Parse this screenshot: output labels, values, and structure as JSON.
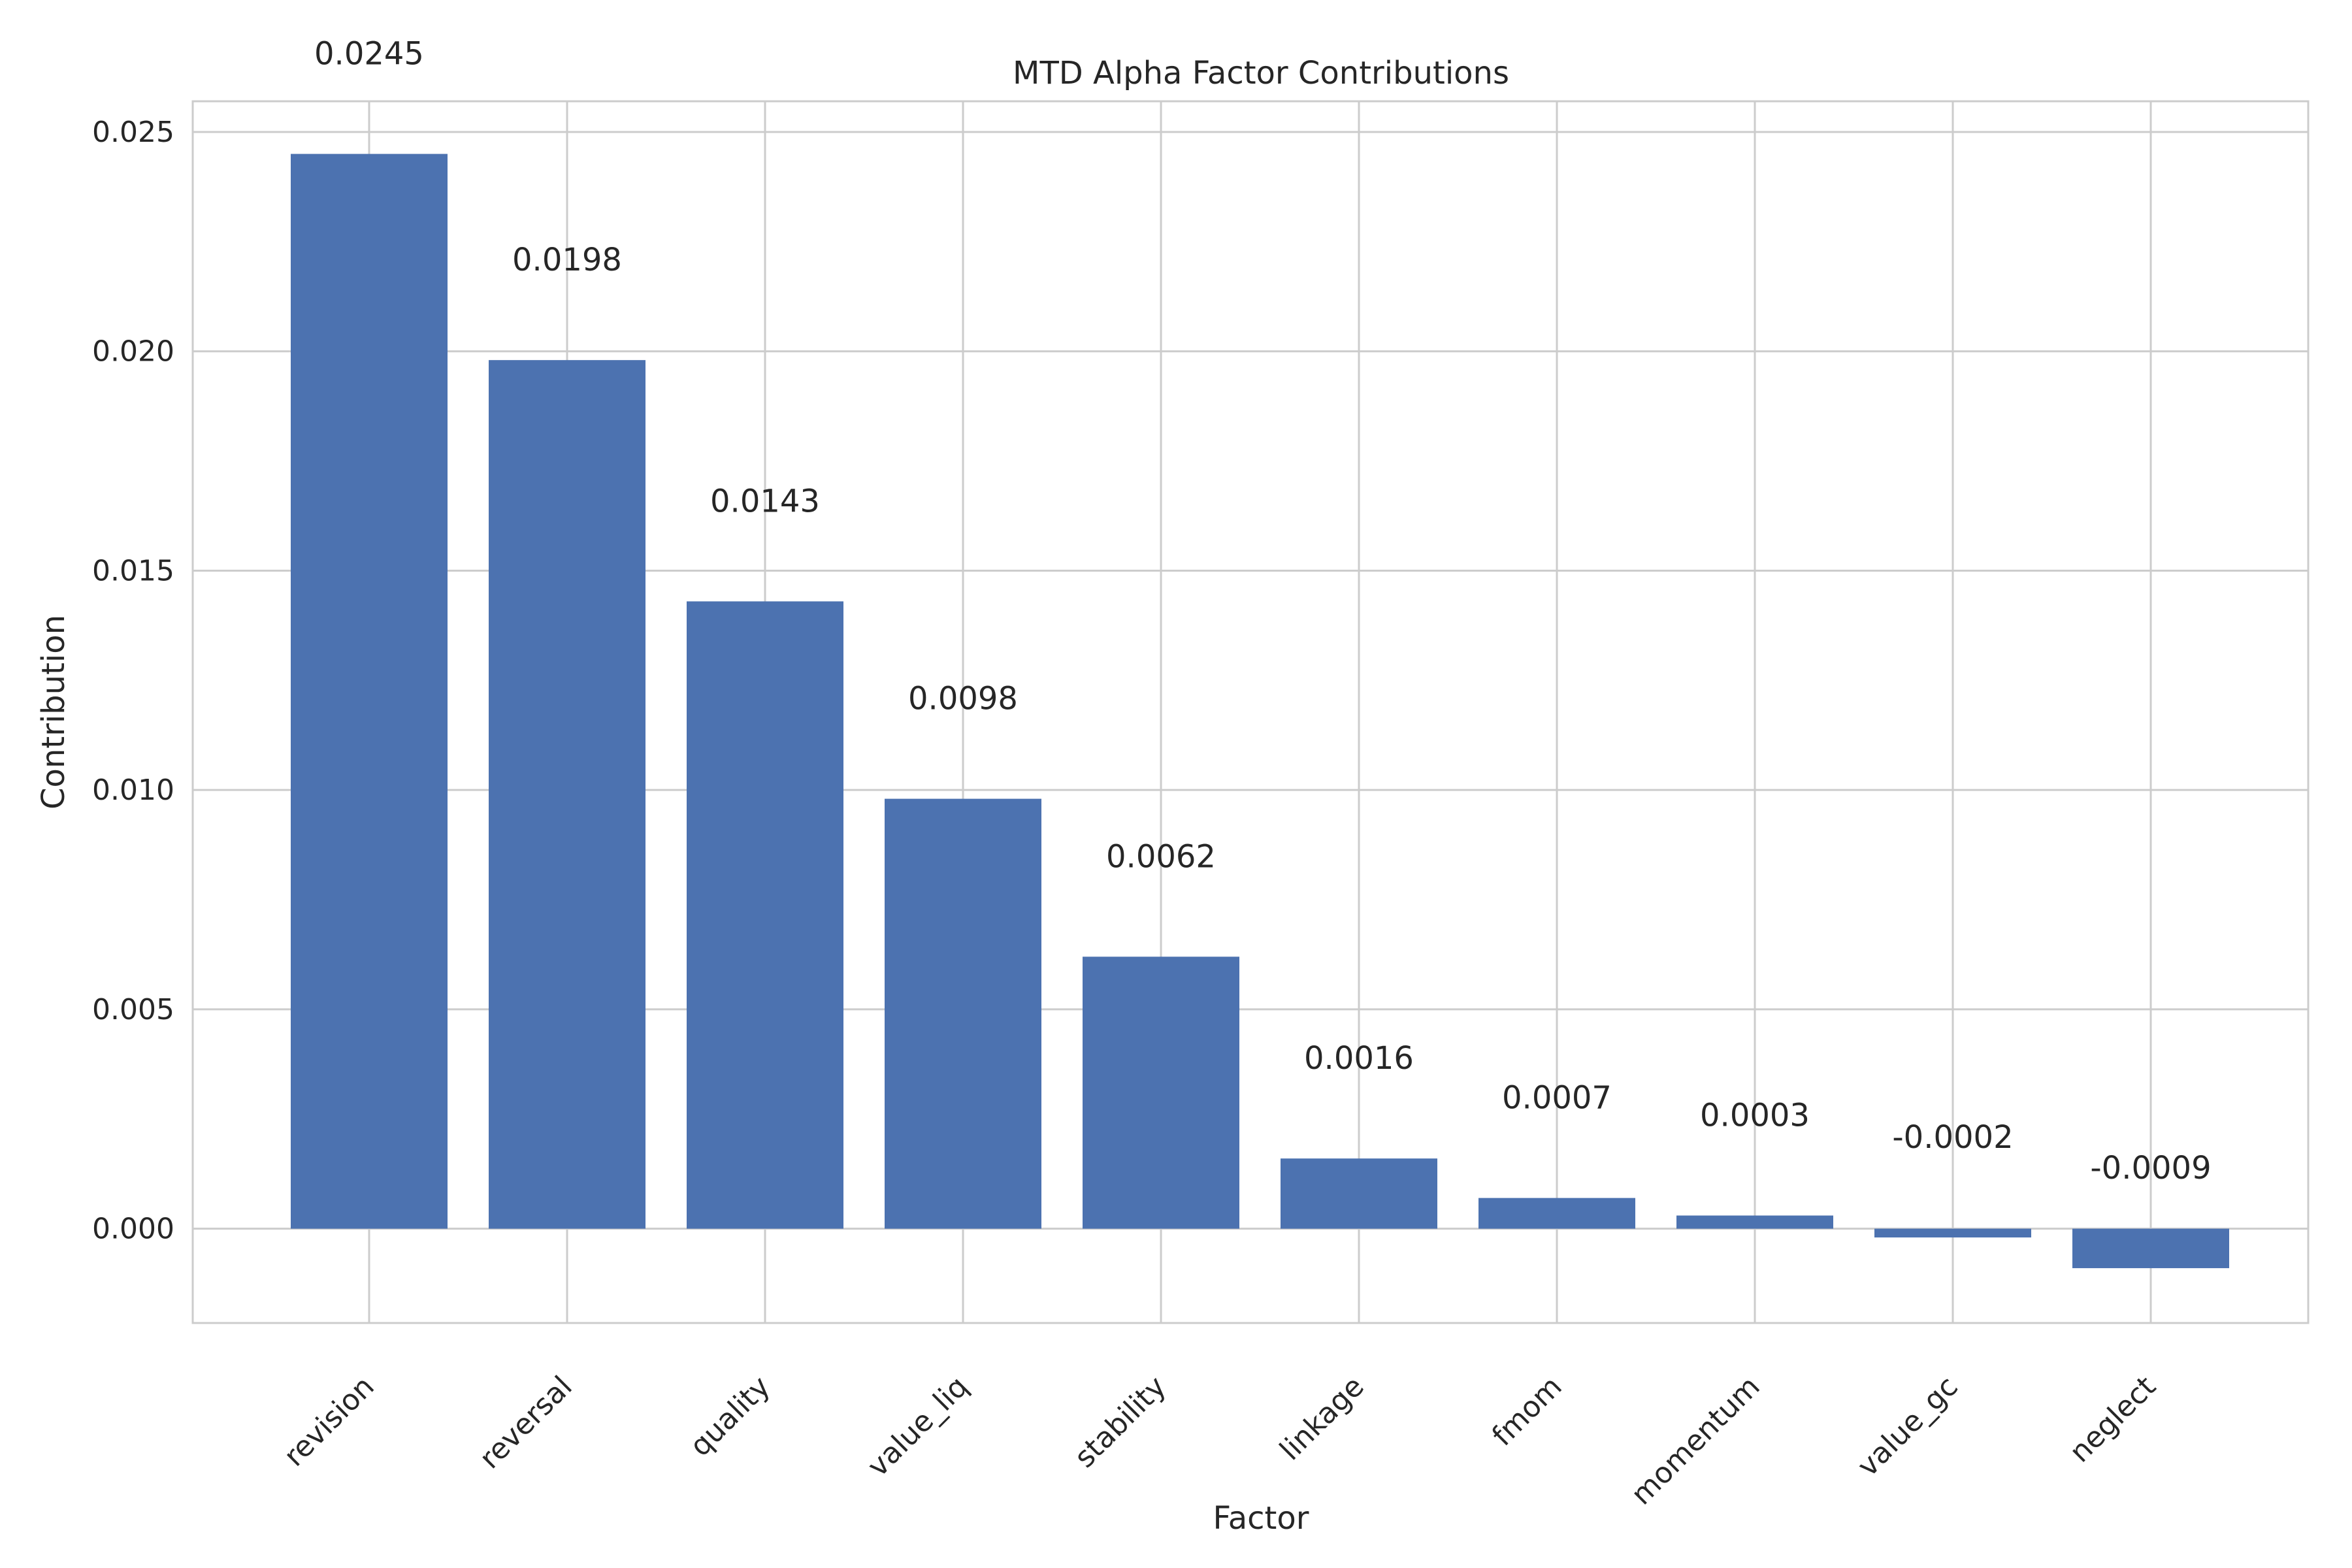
{
  "chart_data": {
    "type": "bar",
    "title": "MTD Alpha Factor Contributions",
    "xlabel": "Factor",
    "ylabel": "Contribution",
    "categories": [
      "revision",
      "reversal",
      "quality",
      "value_liq",
      "stability",
      "linkage",
      "fmom",
      "momentum",
      "value_gc",
      "neglect"
    ],
    "values": [
      0.0245,
      0.0198,
      0.0143,
      0.0098,
      0.0062,
      0.0016,
      0.0007,
      0.0003,
      -0.0002,
      -0.0009
    ],
    "data_labels": [
      "0.0245",
      "0.0198",
      "0.0143",
      "0.0098",
      "0.0062",
      "0.0016",
      "0.0007",
      "0.0003",
      "-0.0002",
      "-0.0009"
    ],
    "y_ticks": [
      0.0,
      0.005,
      0.01,
      0.015,
      0.02,
      0.025
    ],
    "y_tick_labels": [
      "0.000",
      "0.005",
      "0.010",
      "0.015",
      "0.020",
      "0.025"
    ],
    "ylim": [
      -0.00215,
      0.0257
    ],
    "grid": true,
    "bar_color": "#4c72b0",
    "grid_color": "#cccccc"
  }
}
